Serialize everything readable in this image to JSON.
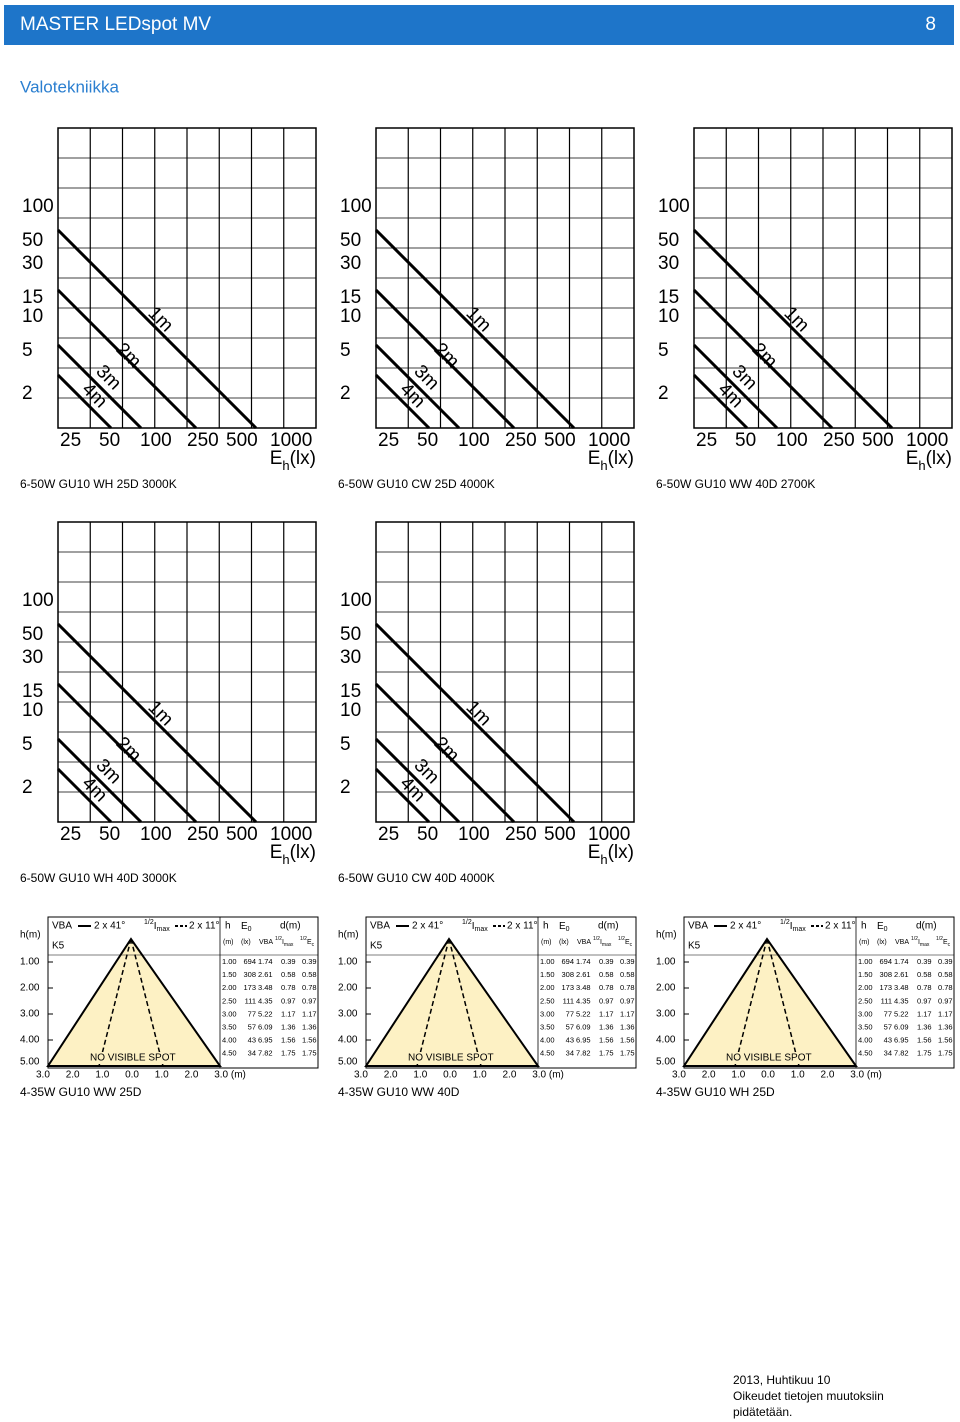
{
  "header": {
    "title": "MASTER LEDspot MV",
    "page": "8"
  },
  "section": "Valotekniikka",
  "isolux": {
    "y_labels": [
      "100",
      "50",
      "30",
      "15",
      "10",
      "5",
      "2"
    ],
    "x_labels": [
      "25",
      "50",
      "100",
      "250",
      "500",
      "1000"
    ],
    "unit_symbol": "E",
    "unit_sub": "h",
    "unit": "(lx)",
    "distances": [
      "1m",
      "2m",
      "3m",
      "4m"
    ],
    "diagrams": [
      {
        "caption": "6-50W GU10 WH 25D 3000K"
      },
      {
        "caption": "6-50W GU10 CW 25D 4000K"
      },
      {
        "caption": "6-50W GU10 WW 40D 2700K"
      },
      {
        "caption": "6-50W GU10 WH 40D 3000K"
      },
      {
        "caption": "6-50W GU10 CW 40D 4000K"
      }
    ]
  },
  "beam": {
    "h_axis": "h(m)",
    "vba": "VBA",
    "vba_angle": "2 x 41°",
    "half": "1/2",
    "imax_sym": "I",
    "imax_sub": "max",
    "half_angle": "2 x 11°",
    "h": "h",
    "e_sym": "E",
    "e_sub": "0",
    "d": "d(m)",
    "class": "K5",
    "unit_m": "(m)",
    "unit_lx": "(lx)",
    "ec_sym": "E",
    "ec_sub": "c",
    "y_labels": [
      "1.00",
      "2.00",
      "3.00",
      "4.00",
      "5.00"
    ],
    "x_labels": [
      "3.0",
      "2.0",
      "1.0",
      "0.0",
      "1.0",
      "2.0",
      "3.0 (m)"
    ],
    "no_spot": "NO VISIBLE SPOT",
    "rows": [
      [
        "1.00",
        "694",
        "1.74",
        "0.39",
        "0.39"
      ],
      [
        "1.50",
        "308",
        "2.61",
        "0.58",
        "0.58"
      ],
      [
        "2.00",
        "173",
        "3.48",
        "0.78",
        "0.78"
      ],
      [
        "2.50",
        "111",
        "4.35",
        "0.97",
        "0.97"
      ],
      [
        "3.00",
        "77",
        "5.22",
        "1.17",
        "1.17"
      ],
      [
        "3.50",
        "57",
        "6.09",
        "1.36",
        "1.36"
      ],
      [
        "4.00",
        "43",
        "6.95",
        "1.56",
        "1.56"
      ],
      [
        "4.50",
        "34",
        "7.82",
        "1.75",
        "1.75"
      ]
    ],
    "captions": [
      "4-35W GU10 WW 25D",
      "4-35W GU10 WW 40D",
      "4-35W GU10 WH 25D"
    ]
  },
  "footer": [
    "2013, Huhtikuu 10",
    "Oikeudet tietojen muutoksiin",
    "pidätetään."
  ]
}
